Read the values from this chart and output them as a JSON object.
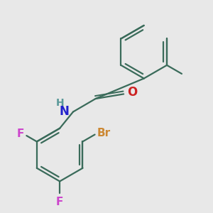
{
  "bg_color": "#e8e8e8",
  "line_color": "#3a6b5a",
  "line_width": 1.6,
  "atom_colors": {
    "H": "#5a9999",
    "N": "#2222cc",
    "O": "#cc2222",
    "F": "#cc44cc",
    "Br": "#cc8833",
    "C_implicit": "#3a6b5a"
  },
  "font_size_atom": 11,
  "font_size_small": 9
}
